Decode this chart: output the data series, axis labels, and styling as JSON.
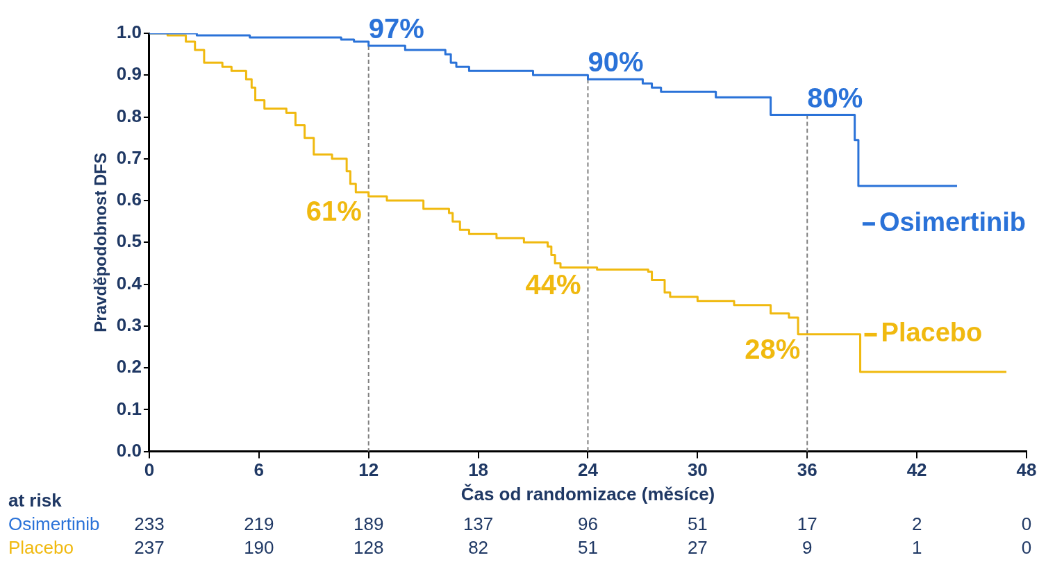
{
  "chart_data": {
    "type": "step",
    "xlabel": "Čas od randomizace (měsíce)",
    "ylabel": "Pravděpodobnost DFS",
    "xlim": [
      0,
      48
    ],
    "xticks": [
      0,
      6,
      12,
      18,
      24,
      30,
      36,
      42,
      48
    ],
    "ylim": [
      0,
      1
    ],
    "yticks": [
      {
        "value": 0,
        "label": "0.0"
      },
      {
        "value": 0.1,
        "label": "0.1"
      },
      {
        "value": 0.2,
        "label": "0.2"
      },
      {
        "value": 0.3,
        "label": "0.3"
      },
      {
        "value": 0.4,
        "label": "0.4"
      },
      {
        "value": 0.5,
        "label": "0.5"
      },
      {
        "value": 0.6,
        "label": "0.6"
      },
      {
        "value": 0.7,
        "label": "0.7"
      },
      {
        "value": 0.8,
        "label": "0.8"
      },
      {
        "value": 0.9,
        "label": "0.9"
      },
      {
        "value": 1,
        "label": "1.0"
      }
    ],
    "grid": false,
    "legend": "right",
    "marker": "none",
    "series": [
      {
        "name": "Osimertinib",
        "color": "#2a72d8",
        "x": [
          0,
          2.6,
          5.5,
          10.5,
          11.2,
          12,
          14,
          16.2,
          16.5,
          16.8,
          17.5,
          21,
          24,
          27,
          27.5,
          28,
          31,
          34,
          38.6,
          38.8,
          44.2
        ],
        "values": [
          1,
          0.995,
          0.99,
          0.985,
          0.98,
          0.97,
          0.96,
          0.95,
          0.93,
          0.92,
          0.91,
          0.9,
          0.89,
          0.88,
          0.87,
          0.86,
          0.847,
          0.805,
          0.745,
          0.635,
          0.635
        ]
      },
      {
        "name": "Placebo",
        "color": "#f0b90f",
        "x": [
          0,
          1,
          2,
          2.5,
          3,
          4,
          4.5,
          5.3,
          5.6,
          5.8,
          6.3,
          7.5,
          8,
          8.5,
          9,
          10,
          10.8,
          11,
          11.3,
          12,
          13,
          15,
          16.4,
          16.6,
          17,
          17.5,
          19,
          20.5,
          21.8,
          22,
          22.2,
          22.5,
          24.5,
          27.3,
          27.5,
          28.2,
          28.5,
          30,
          32,
          34,
          35,
          35.5,
          38.7,
          38.9,
          46.9
        ],
        "values": [
          1,
          0.995,
          0.98,
          0.96,
          0.93,
          0.92,
          0.91,
          0.89,
          0.87,
          0.84,
          0.82,
          0.81,
          0.78,
          0.75,
          0.71,
          0.7,
          0.67,
          0.64,
          0.62,
          0.61,
          0.6,
          0.58,
          0.57,
          0.55,
          0.53,
          0.52,
          0.51,
          0.5,
          0.49,
          0.47,
          0.45,
          0.44,
          0.435,
          0.43,
          0.41,
          0.38,
          0.37,
          0.36,
          0.35,
          0.33,
          0.32,
          0.28,
          0.28,
          0.19,
          0.19
        ]
      }
    ],
    "ref_lines": [
      {
        "axis": "x",
        "value": 12,
        "color": "#808080",
        "line_style": "dashed"
      },
      {
        "axis": "x",
        "value": 24,
        "color": "#808080",
        "line_style": "dashed"
      },
      {
        "axis": "x",
        "value": 36,
        "color": "#808080",
        "line_style": "dashed"
      }
    ],
    "annotations": [
      {
        "text": "97%",
        "x": 12,
        "y": 0.97
      },
      {
        "text": "90%",
        "x": 24,
        "y": 0.89
      },
      {
        "text": "80%",
        "x": 36,
        "y": 0.805
      },
      {
        "text": "61%",
        "x": 12,
        "y": 0.61
      },
      {
        "text": "44%",
        "x": 24,
        "y": 0.435
      },
      {
        "text": "28%",
        "x": 36,
        "y": 0.28
      },
      "at risk",
      "Osimertinib",
      "233",
      "219",
      "189",
      "137",
      "96",
      "51",
      "17",
      "2",
      "0",
      "Placebo",
      "237",
      "190",
      "128",
      "82",
      "51",
      "27",
      "9",
      "1",
      "0"
    ]
  }
}
